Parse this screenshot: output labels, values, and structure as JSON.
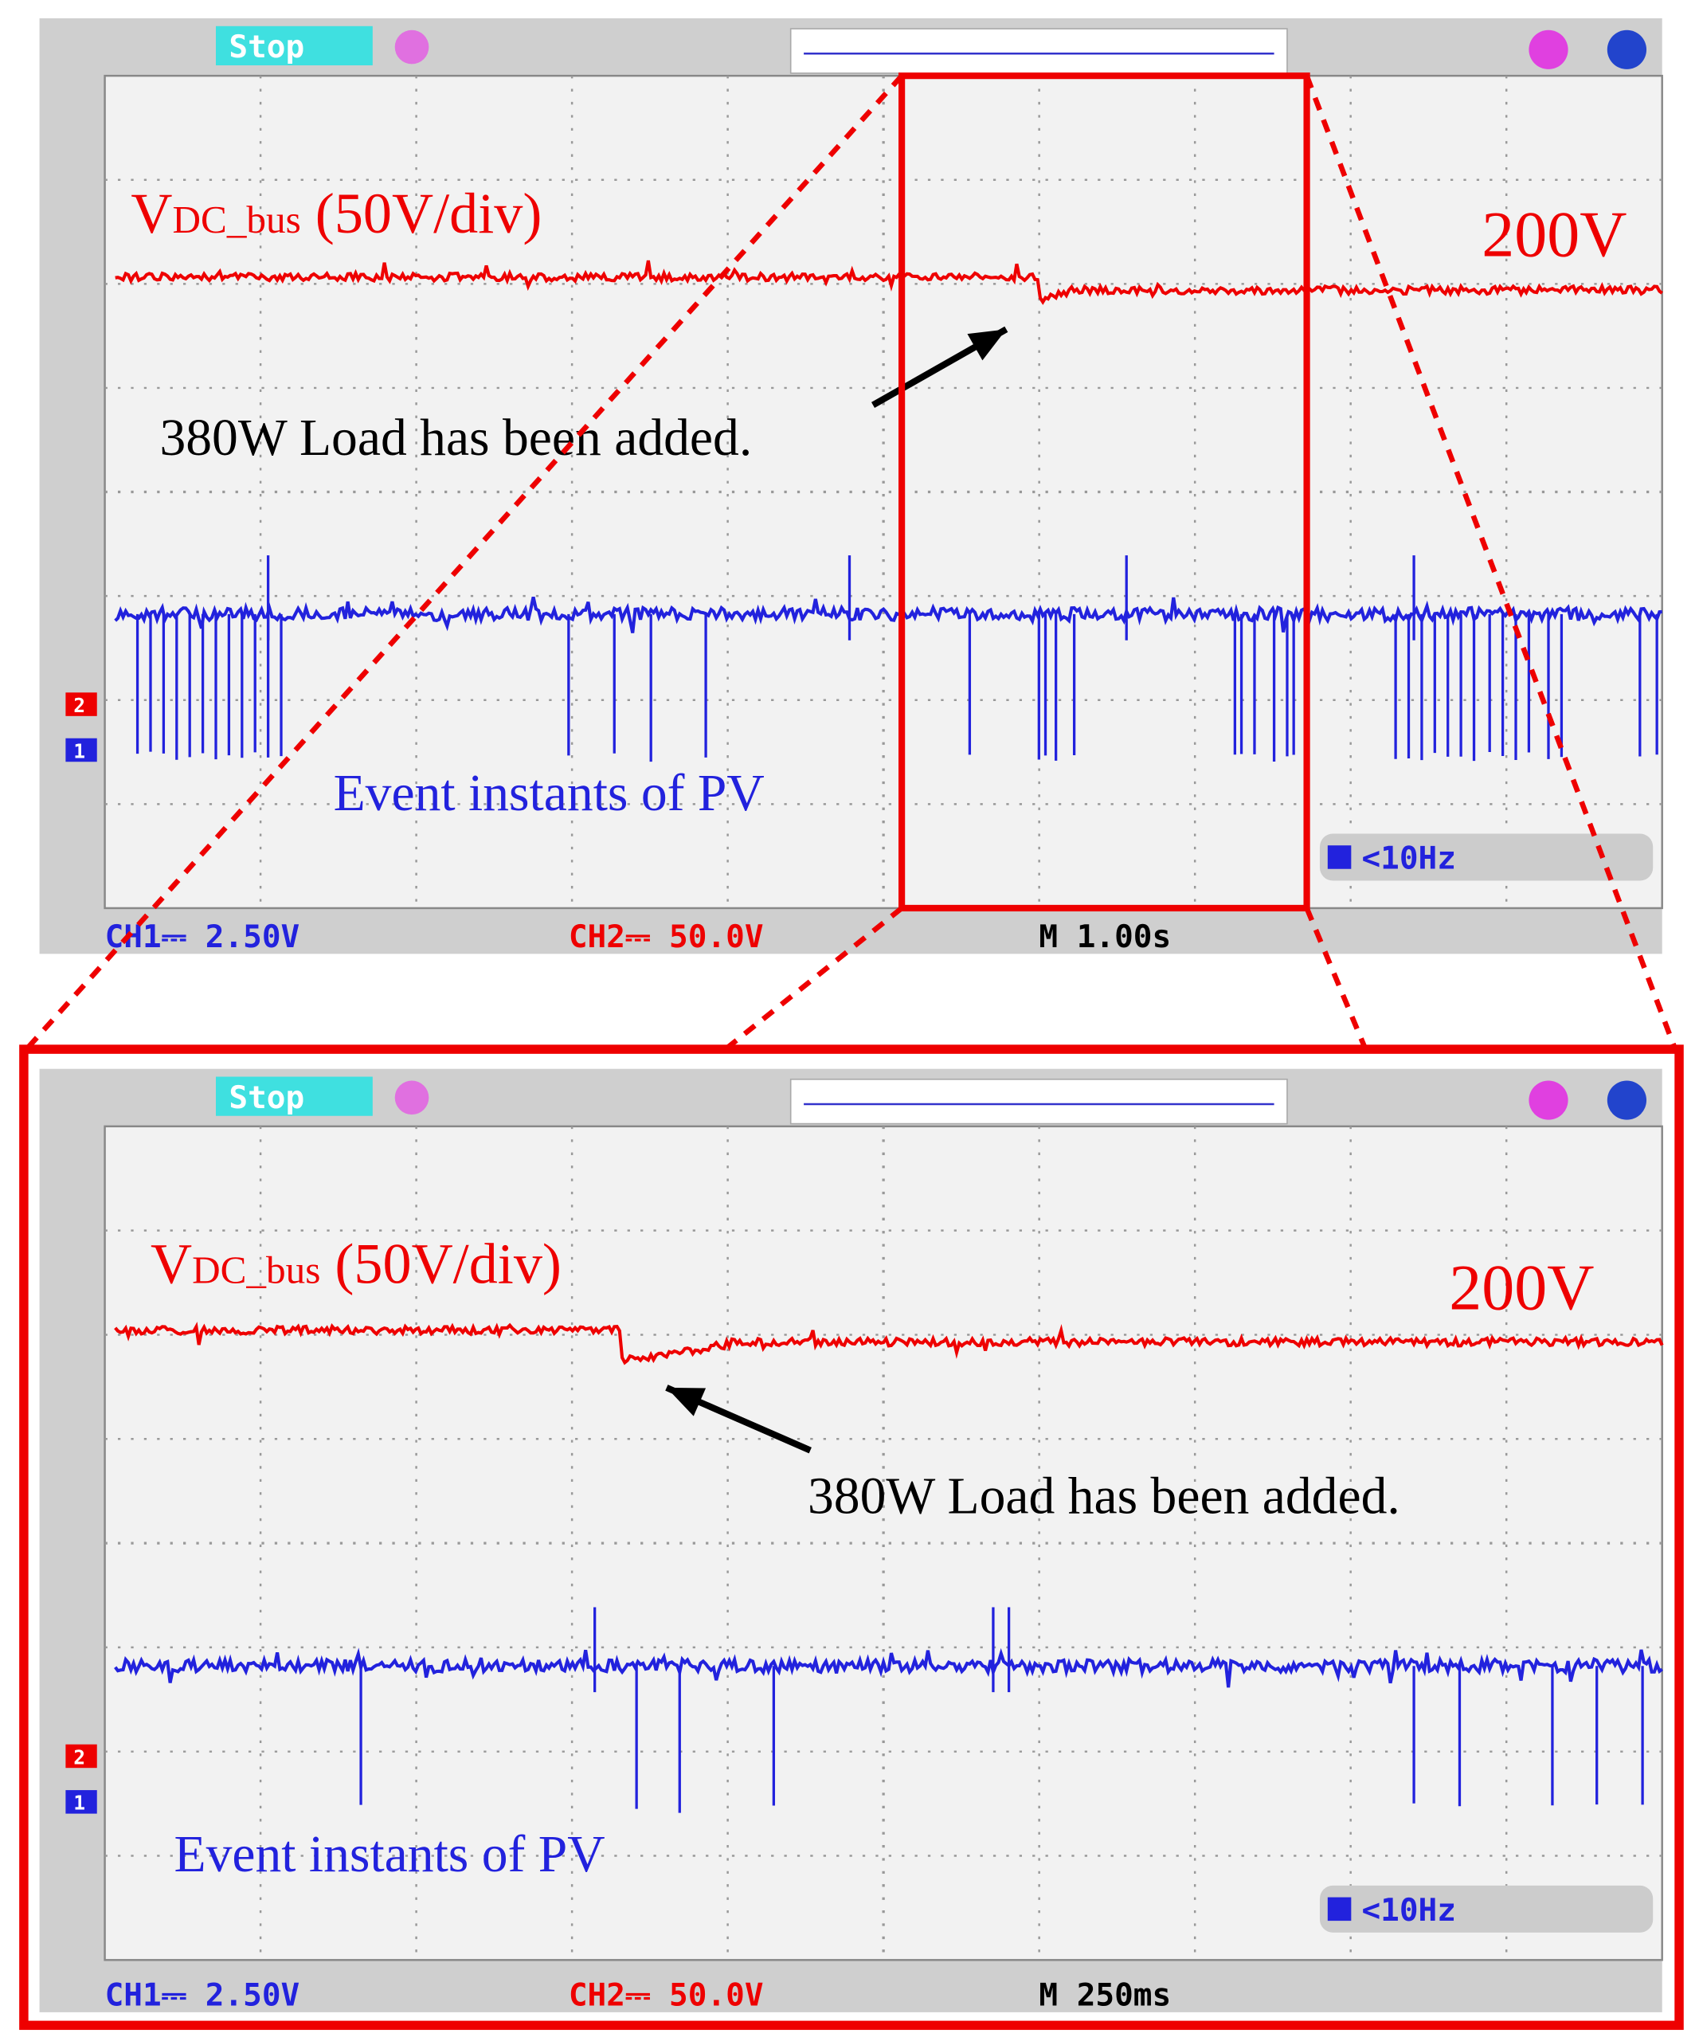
{
  "panels": [
    {
      "status": "Stop",
      "signal_label": {
        "main": "V",
        "sub": "DC_bus",
        "rest": " (50V/div)"
      },
      "level": "200V",
      "annotation": "380W Load has been added.",
      "event_label": "Event instants of PV",
      "markers": [
        "2",
        "1"
      ],
      "trigger": "<10Hz",
      "ch1": "CH1⎓ 2.50V",
      "ch2": "CH2⎓ 50.0V",
      "timebase": "M 1.00s"
    },
    {
      "status": "Stop",
      "signal_label": {
        "main": "V",
        "sub": "DC_bus",
        "rest": " (50V/div)"
      },
      "level": "200V",
      "annotation": "380W Load has been added.",
      "event_label": "Event instants of PV",
      "markers": [
        "2",
        "1"
      ],
      "trigger": "<10Hz",
      "ch1": "CH1⎓ 2.50V",
      "ch2": "CH2⎓ 50.0V",
      "timebase": "M 250ms"
    }
  ]
}
